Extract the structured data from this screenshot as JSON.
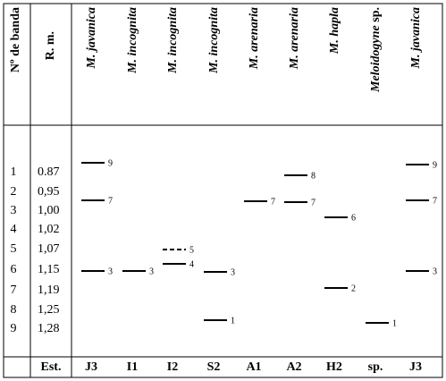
{
  "header": {
    "band_number": "Nº de banda",
    "rm": "R. m."
  },
  "rows": [
    {
      "band": "1",
      "rm": "0.87"
    },
    {
      "band": "2",
      "rm": "0,95"
    },
    {
      "band": "3",
      "rm": "1,00"
    },
    {
      "band": "4",
      "rm": "1,02"
    },
    {
      "band": "5",
      "rm": "1,07"
    },
    {
      "band": "6",
      "rm": "1,15"
    },
    {
      "band": "7",
      "rm": "1,19"
    },
    {
      "band": "8",
      "rm": "1,25"
    },
    {
      "band": "9",
      "rm": "1,28"
    }
  ],
  "footer_label": "Est.",
  "columns": [
    {
      "header": "M. javanica",
      "footer": "J3",
      "bands": [
        {
          "label": "9"
        },
        {
          "label": "7"
        },
        {
          "label": "3"
        }
      ]
    },
    {
      "header": "M. incognita",
      "footer": "I1",
      "bands": [
        {
          "label": "3"
        }
      ]
    },
    {
      "header": "M. incognita",
      "footer": "I2",
      "bands": [
        {
          "label": "5",
          "style": "dashed"
        },
        {
          "label": "4"
        }
      ]
    },
    {
      "header": "M. incognita",
      "footer": "S2",
      "bands": [
        {
          "label": "3"
        },
        {
          "label": "1"
        }
      ]
    },
    {
      "header": "M. arenaria",
      "footer": "A1",
      "bands": [
        {
          "label": "7"
        }
      ]
    },
    {
      "header": "M. arenaria",
      "footer": "A2",
      "bands": [
        {
          "label": "8"
        },
        {
          "label": "7"
        }
      ]
    },
    {
      "header": "M. hapla",
      "footer": "H2",
      "bands": [
        {
          "label": "6"
        },
        {
          "label": "2"
        }
      ]
    },
    {
      "header": "Meloidogyne",
      "header_suffix": "sp.",
      "footer": "sp.",
      "bands": [
        {
          "label": "1"
        }
      ]
    },
    {
      "header": "M. javanica",
      "footer": "J3",
      "bands": [
        {
          "label": "9"
        },
        {
          "label": "7"
        },
        {
          "label": "3"
        }
      ]
    }
  ]
}
